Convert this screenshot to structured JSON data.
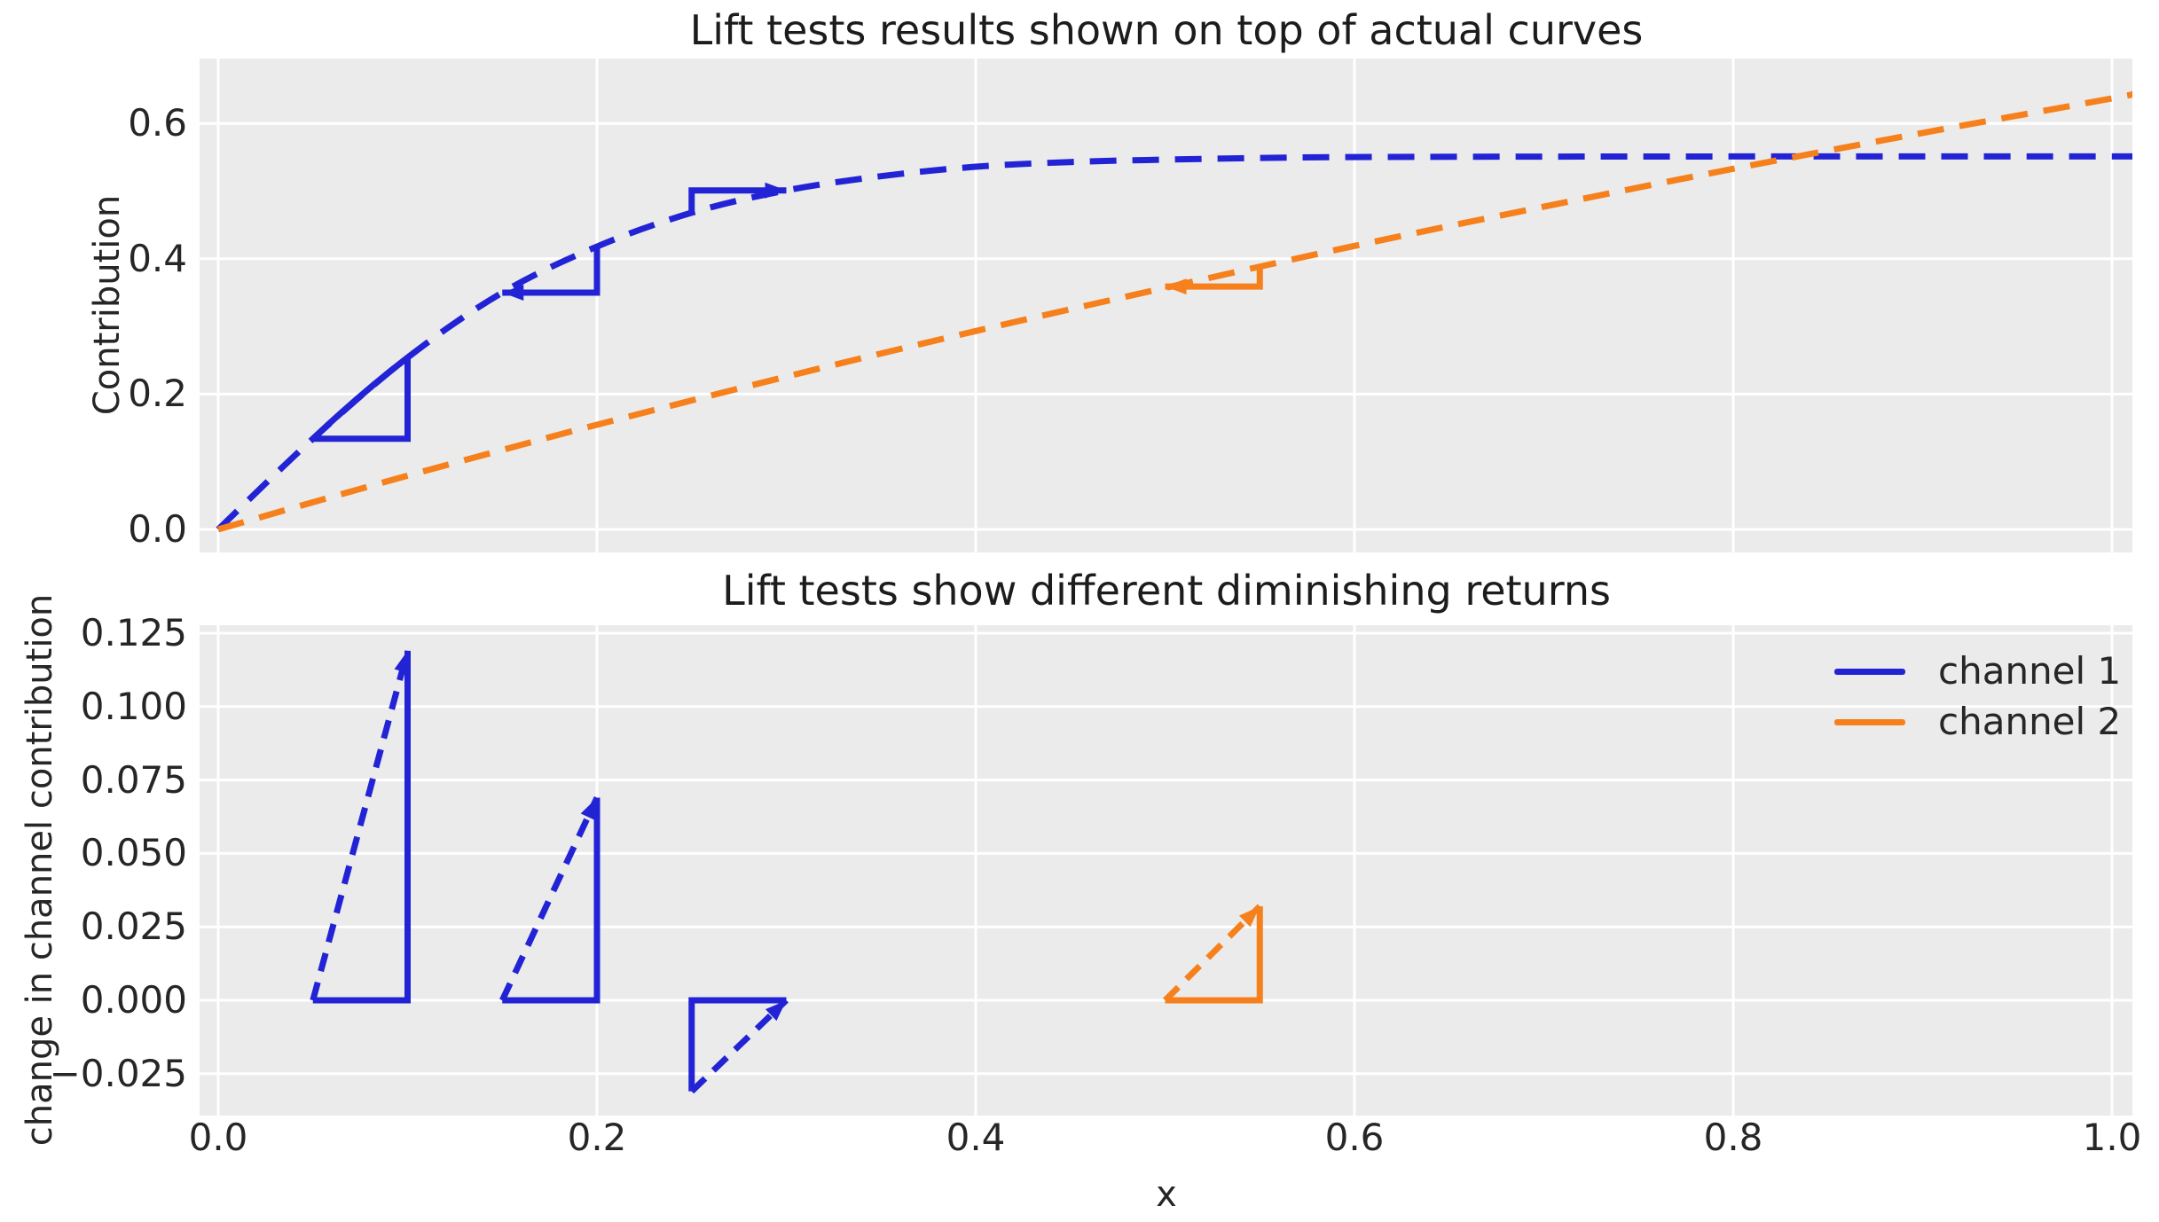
{
  "colors": {
    "channel1": "#2323d6",
    "channel2": "#f6801c",
    "axes_background": "#ebebeb",
    "grid": "#ffffff",
    "text": "#262626",
    "title_text": "#1c1c1c"
  },
  "legend": {
    "items": [
      {
        "label": "channel 1",
        "color_key": "channel1"
      },
      {
        "label": "channel 2",
        "color_key": "channel2"
      }
    ]
  },
  "chart_data": [
    {
      "type": "line",
      "title": "Lift tests results shown on top of actual curves",
      "xlabel": "",
      "ylabel": "Contribution",
      "grid": true,
      "xlim": [
        -0.01,
        1.011
      ],
      "ylim": [
        -0.034,
        0.696
      ],
      "xtick_values": [
        0.0,
        0.2,
        0.4,
        0.6,
        0.8,
        1.0
      ],
      "xtick_labels": [],
      "ytick_values": [
        0.6,
        0.4,
        0.2,
        0.0
      ],
      "ytick_labels": [
        "0.6",
        "0.4",
        "0.2",
        "0.0"
      ],
      "series": [
        {
          "name": "channel 1",
          "color_key": "channel1",
          "linestyle": "dashed",
          "points": [
            [
              0,
              0
            ],
            [
              0.05,
              0.134
            ],
            [
              0.1,
              0.254
            ],
            [
              0.15,
              0.35
            ],
            [
              0.2,
              0.418
            ],
            [
              0.25,
              0.468
            ],
            [
              0.3,
              0.501
            ],
            [
              0.35,
              0.522
            ],
            [
              0.4,
              0.536
            ],
            [
              0.45,
              0.543
            ],
            [
              0.5,
              0.5465
            ],
            [
              0.55,
              0.549
            ],
            [
              0.6,
              0.5503
            ],
            [
              0.7,
              0.551
            ],
            [
              0.8,
              0.5512
            ],
            [
              0.9,
              0.5513
            ],
            [
              1.011,
              0.5513
            ]
          ]
        },
        {
          "name": "channel 2",
          "color_key": "channel2",
          "linestyle": "dashed",
          "points": [
            [
              0,
              0
            ],
            [
              0.05,
              0.0402
            ],
            [
              0.1,
              0.0794
            ],
            [
              0.15,
              0.1174
            ],
            [
              0.2,
              0.1547
            ],
            [
              0.3,
              0.2258
            ],
            [
              0.4,
              0.2932
            ],
            [
              0.5,
              0.357
            ],
            [
              0.6,
              0.419
            ],
            [
              0.7,
              0.477
            ],
            [
              0.8,
              0.533
            ],
            [
              0.9,
              0.586
            ],
            [
              1.0,
              0.637
            ],
            [
              1.011,
              0.6435
            ]
          ]
        }
      ],
      "lift_tests": [
        {
          "channel": "channel 1",
          "x_start": 0.05,
          "x_end": 0.1,
          "y_start": 0.134,
          "y_end": 0.254,
          "solid": [
            [
              0.05,
              0.134
            ],
            [
              0.1,
              0.134
            ],
            [
              0.1,
              0.254
            ]
          ],
          "qcurve": {
            "p0": [
              0.05,
              0.134
            ],
            "mid": [
              0.075,
              0.197
            ],
            "p1": [
              0.1,
              0.254
            ]
          }
        },
        {
          "channel": "channel 1",
          "x_start": 0.15,
          "x_end": 0.2,
          "y_start": 0.35,
          "y_end": 0.418,
          "solid": [
            [
              0.15,
              0.35
            ],
            [
              0.2,
              0.35
            ],
            [
              0.2,
              0.418
            ]
          ],
          "arrow": {
            "tip": [
              0.15,
              0.35
            ],
            "dir": [
              -1,
              0
            ]
          }
        },
        {
          "channel": "channel 1",
          "x_start": 0.25,
          "x_end": 0.3,
          "y_start": 0.468,
          "y_end": 0.501,
          "solid": [
            [
              0.25,
              0.468
            ],
            [
              0.25,
              0.501
            ],
            [
              0.3,
              0.501
            ]
          ],
          "arrow": {
            "tip": [
              0.3,
              0.501
            ],
            "dir": [
              1,
              0
            ]
          }
        },
        {
          "channel": "channel 2",
          "x_start": 0.5,
          "x_end": 0.55,
          "y_start": 0.359,
          "y_end": 0.392,
          "solid": [
            [
              0.5,
              0.359
            ],
            [
              0.55,
              0.359
            ],
            [
              0.55,
              0.392
            ]
          ],
          "arrow": {
            "tip": [
              0.5,
              0.359
            ],
            "dir": [
              -1,
              0
            ]
          }
        }
      ]
    },
    {
      "type": "line",
      "title": "Lift tests show different diminishing returns",
      "xlabel": "x",
      "ylabel": "change in channel contribution",
      "grid": true,
      "xlim": [
        -0.01,
        1.011
      ],
      "ylim": [
        -0.0393,
        0.1277
      ],
      "xtick_values": [
        0.0,
        0.2,
        0.4,
        0.6,
        0.8,
        1.0
      ],
      "xtick_labels": [
        "0.0",
        "0.2",
        "0.4",
        "0.6",
        "0.8",
        "1.0"
      ],
      "ytick_values": [
        0.125,
        0.1,
        0.075,
        0.05,
        0.025,
        0.0,
        -0.025
      ],
      "ytick_labels": [
        "0.125",
        "0.100",
        "0.075",
        "0.050",
        "0.025",
        "0.000",
        "−0.025"
      ],
      "series": [],
      "lift_tests": [
        {
          "channel": "channel 1",
          "x_start": 0.05,
          "x_end": 0.1,
          "delta": 0.119,
          "solid": [
            [
              0.05,
              0
            ],
            [
              0.1,
              0
            ],
            [
              0.1,
              0.119
            ]
          ],
          "dashed": [
            [
              0.05,
              0
            ],
            [
              0.1,
              0.119
            ]
          ],
          "arrow": {
            "tip": [
              0.1,
              0.119
            ],
            "dir": [
              0.05,
              0.119
            ]
          }
        },
        {
          "channel": "channel 1",
          "x_start": 0.15,
          "x_end": 0.2,
          "delta": 0.069,
          "solid": [
            [
              0.15,
              0
            ],
            [
              0.2,
              0
            ],
            [
              0.2,
              0.069
            ]
          ],
          "dashed": [
            [
              0.15,
              0
            ],
            [
              0.2,
              0.069
            ]
          ],
          "arrow": {
            "tip": [
              0.2,
              0.069
            ],
            "dir": [
              0.05,
              0.069
            ]
          }
        },
        {
          "channel": "channel 1",
          "x_start": 0.25,
          "x_end": 0.3,
          "delta": -0.031,
          "solid": [
            [
              0.3,
              0
            ],
            [
              0.25,
              0
            ],
            [
              0.25,
              -0.031
            ]
          ],
          "dashed": [
            [
              0.25,
              -0.031
            ],
            [
              0.3,
              0
            ]
          ],
          "arrow": {
            "tip": [
              0.3,
              0
            ],
            "dir": [
              0.05,
              0.031
            ]
          }
        },
        {
          "channel": "channel 2",
          "x_start": 0.5,
          "x_end": 0.55,
          "delta": 0.032,
          "solid": [
            [
              0.5,
              0
            ],
            [
              0.55,
              0
            ],
            [
              0.55,
              0.032
            ]
          ],
          "dashed": [
            [
              0.5,
              0
            ],
            [
              0.55,
              0.032
            ]
          ],
          "arrow": {
            "tip": [
              0.55,
              0.032
            ],
            "dir": [
              0.05,
              0.032
            ]
          }
        }
      ]
    }
  ]
}
